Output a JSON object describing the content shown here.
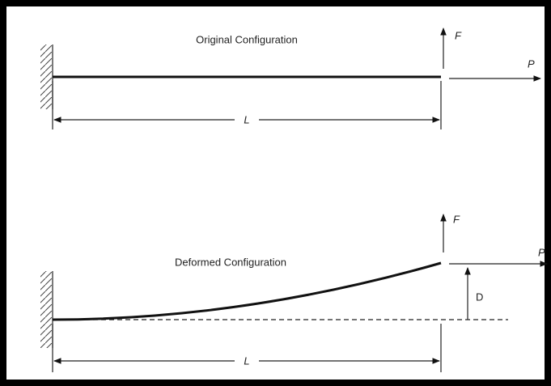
{
  "original": {
    "title": "Original Configuration",
    "force": "F",
    "axial": "P",
    "length": "L"
  },
  "deformed": {
    "title": "Deformed Configuration",
    "force": "F",
    "axial": "P",
    "deflection": "D",
    "length": "L"
  }
}
